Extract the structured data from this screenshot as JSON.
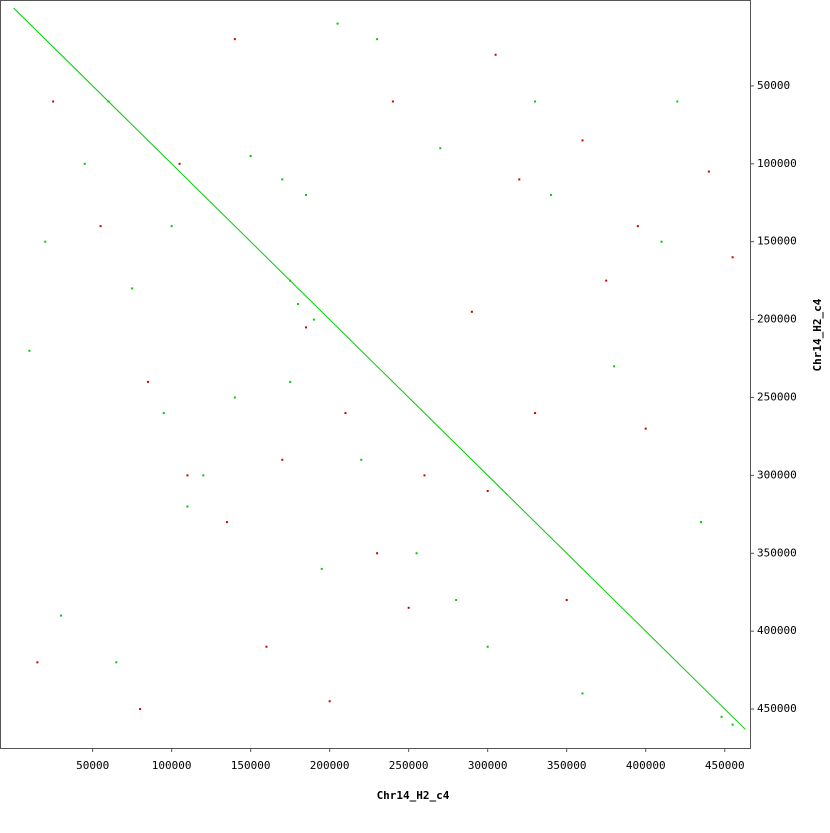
{
  "chart_data": {
    "type": "scatter",
    "xlabel": "Chr14_H2_c4",
    "ylabel": "Chr14_H2_c4",
    "xlim": [
      -8000,
      466000
    ],
    "ylim": [
      -4500,
      475000
    ],
    "y_inverted": true,
    "xticks": [
      50000,
      100000,
      150000,
      200000,
      250000,
      300000,
      350000,
      400000,
      450000
    ],
    "yticks": [
      50000,
      100000,
      150000,
      200000,
      250000,
      300000,
      350000,
      400000,
      450000
    ],
    "series": [
      {
        "color": "#00cc00",
        "mode": "line",
        "x": [
          0,
          463000
        ],
        "y": [
          0,
          463000
        ]
      },
      {
        "color": "#00cc00",
        "mode": "points",
        "x": [
          20000,
          45000,
          60000,
          75000,
          100000,
          120000,
          140000,
          175000,
          180000,
          190000,
          230000,
          255000,
          270000,
          300000,
          330000,
          360000,
          410000,
          435000,
          448000,
          455000,
          30000,
          95000,
          220000,
          340000,
          380000,
          150000,
          65000,
          205000,
          280000,
          420000,
          170000,
          185000,
          175000,
          195000,
          10000,
          110000
        ],
        "y": [
          150000,
          100000,
          60000,
          180000,
          140000,
          300000,
          250000,
          175000,
          190000,
          200000,
          20000,
          350000,
          90000,
          410000,
          60000,
          440000,
          150000,
          330000,
          455000,
          460000,
          390000,
          260000,
          290000,
          120000,
          230000,
          95000,
          420000,
          10000,
          380000,
          60000,
          110000,
          120000,
          240000,
          360000,
          220000,
          320000
        ]
      },
      {
        "color": "#cc0000",
        "mode": "points",
        "x": [
          25000,
          55000,
          85000,
          105000,
          135000,
          160000,
          170000,
          200000,
          210000,
          240000,
          260000,
          290000,
          305000,
          320000,
          350000,
          375000,
          395000,
          440000,
          15000,
          110000,
          140000,
          250000,
          330000,
          400000,
          455000,
          185000,
          300000,
          80000,
          230000,
          360000
        ],
        "y": [
          60000,
          140000,
          240000,
          100000,
          330000,
          410000,
          290000,
          445000,
          260000,
          60000,
          300000,
          195000,
          30000,
          110000,
          380000,
          175000,
          140000,
          105000,
          420000,
          300000,
          20000,
          385000,
          260000,
          270000,
          160000,
          205000,
          310000,
          450000,
          350000,
          85000
        ]
      }
    ]
  }
}
